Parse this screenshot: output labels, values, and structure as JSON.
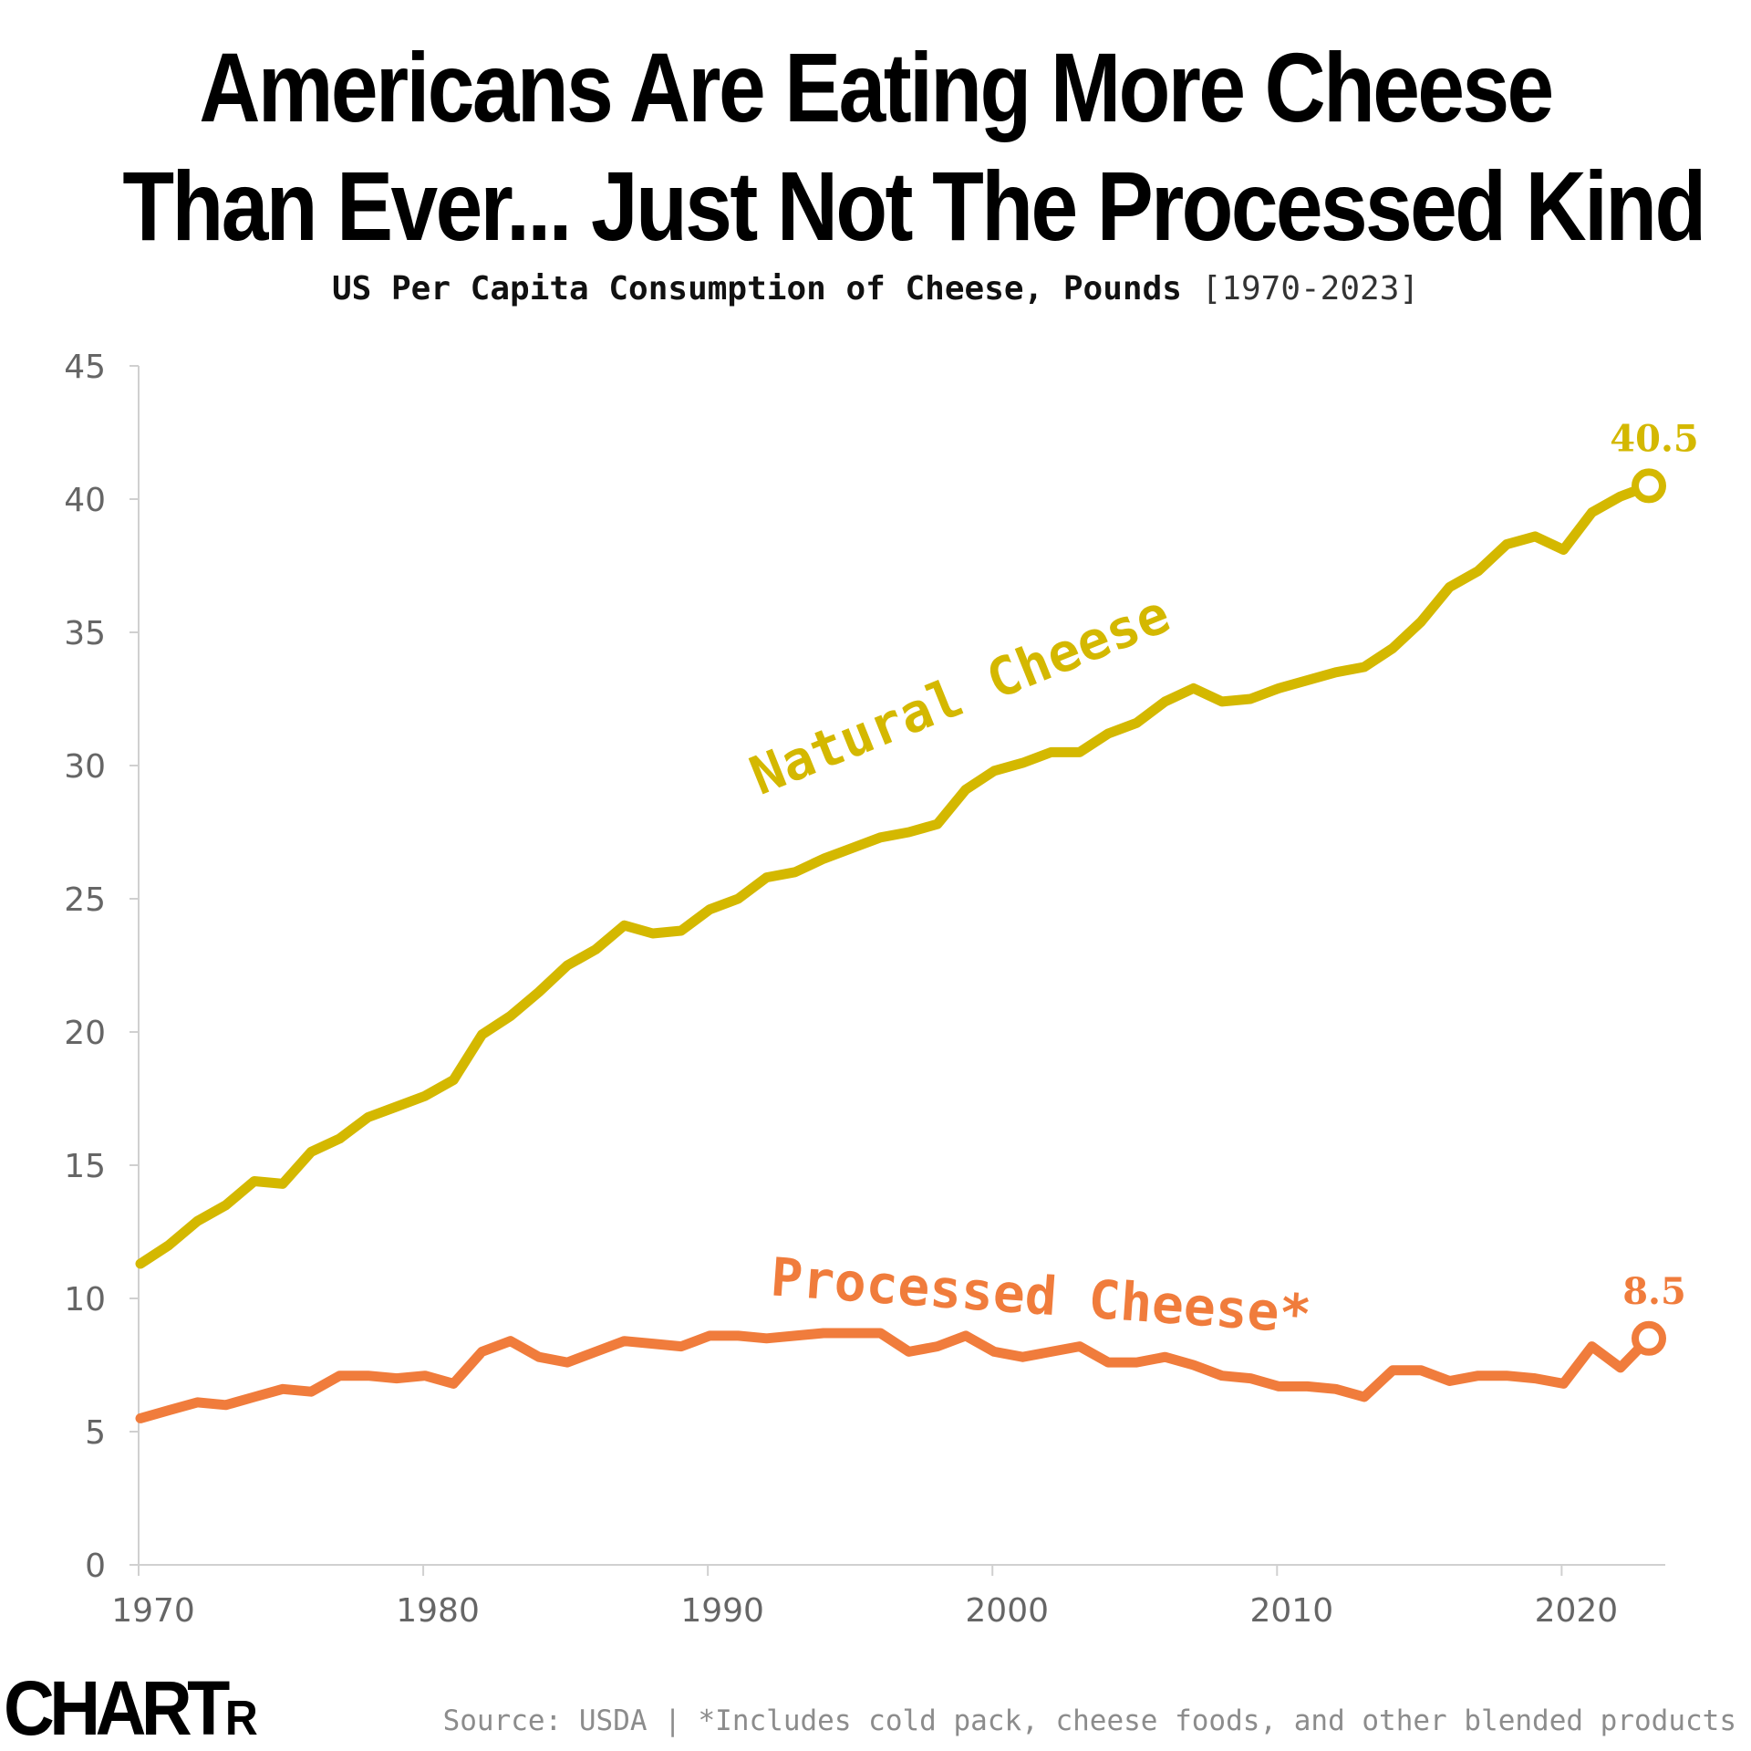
{
  "title_line1": "Americans Are Eating More Cheese",
  "title_line2": "Than Ever... Just Not The Processed Kind",
  "subtitle_main": "US Per Capita Consumption of Cheese, Pounds",
  "subtitle_range": "[1970-2023]",
  "logo_big": "CHART",
  "logo_small": "R",
  "source": "Source: USDA | *Includes cold pack, cheese foods, and other blended products",
  "chart_data": {
    "type": "line",
    "x_ticks": [
      1970,
      1980,
      1990,
      2000,
      2010,
      2020
    ],
    "y_ticks": [
      0,
      5,
      10,
      15,
      20,
      25,
      30,
      35,
      40,
      45
    ],
    "xlim": [
      1970,
      2024
    ],
    "ylim": [
      0,
      45
    ],
    "grid": false,
    "series": [
      {
        "name": "Natural Cheese",
        "color": "#d4b800",
        "end_label": "40.5",
        "x": [
          1970,
          1971,
          1972,
          1973,
          1974,
          1975,
          1976,
          1977,
          1978,
          1979,
          1980,
          1981,
          1982,
          1983,
          1984,
          1985,
          1986,
          1987,
          1988,
          1989,
          1990,
          1991,
          1992,
          1993,
          1994,
          1995,
          1996,
          1997,
          1998,
          1999,
          2000,
          2001,
          2002,
          2003,
          2004,
          2005,
          2006,
          2007,
          2008,
          2009,
          2010,
          2011,
          2012,
          2013,
          2014,
          2015,
          2016,
          2017,
          2018,
          2019,
          2020,
          2021,
          2022,
          2023
        ],
        "values": [
          11.3,
          12.0,
          12.9,
          13.5,
          14.4,
          14.3,
          15.5,
          16.0,
          16.8,
          17.2,
          17.6,
          18.2,
          19.9,
          20.6,
          21.5,
          22.5,
          23.1,
          24.0,
          23.7,
          23.8,
          24.6,
          25.0,
          25.8,
          26.0,
          26.5,
          26.9,
          27.3,
          27.5,
          27.8,
          29.1,
          29.8,
          30.1,
          30.5,
          30.5,
          31.2,
          31.6,
          32.4,
          32.9,
          32.4,
          32.5,
          32.9,
          33.2,
          33.5,
          33.7,
          34.4,
          35.4,
          36.7,
          37.3,
          38.3,
          38.6,
          38.1,
          39.5,
          40.1,
          40.5
        ]
      },
      {
        "name": "Processed Cheese*",
        "color": "#f07c3c",
        "end_label": "8.5",
        "x": [
          1970,
          1971,
          1972,
          1973,
          1974,
          1975,
          1976,
          1977,
          1978,
          1979,
          1980,
          1981,
          1982,
          1983,
          1984,
          1985,
          1986,
          1987,
          1988,
          1989,
          1990,
          1991,
          1992,
          1993,
          1994,
          1995,
          1996,
          1997,
          1998,
          1999,
          2000,
          2001,
          2002,
          2003,
          2004,
          2005,
          2006,
          2007,
          2008,
          2009,
          2010,
          2011,
          2012,
          2013,
          2014,
          2015,
          2016,
          2017,
          2018,
          2019,
          2020,
          2021,
          2022,
          2023
        ],
        "values": [
          5.5,
          5.8,
          6.1,
          6.0,
          6.3,
          6.6,
          6.5,
          7.1,
          7.1,
          7.0,
          7.1,
          6.8,
          8.0,
          8.4,
          7.8,
          7.6,
          8.0,
          8.4,
          8.3,
          8.2,
          8.6,
          8.6,
          8.5,
          8.6,
          8.7,
          8.7,
          8.7,
          8.0,
          8.2,
          8.6,
          8.0,
          7.8,
          8.0,
          8.2,
          7.6,
          7.6,
          7.8,
          7.5,
          7.1,
          7.0,
          6.7,
          6.7,
          6.6,
          6.3,
          7.3,
          7.3,
          6.9,
          7.1,
          7.1,
          7.0,
          6.8,
          8.2,
          7.4,
          8.5
        ]
      }
    ]
  }
}
